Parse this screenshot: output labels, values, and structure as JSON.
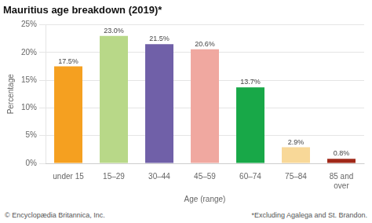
{
  "chart_data": {
    "type": "bar",
    "title": "Mauritius age breakdown (2019)*",
    "categories": [
      "under 15",
      "15–29",
      "30–44",
      "45–59",
      "60–74",
      "75–84",
      "85 and\nover"
    ],
    "values": [
      17.5,
      23.0,
      21.5,
      20.6,
      13.7,
      2.9,
      0.8
    ],
    "value_labels": [
      "17.5%",
      "23.0%",
      "21.5%",
      "20.6%",
      "13.7%",
      "2.9%",
      "0.8%"
    ],
    "data_labels": true,
    "colors": [
      "#f5a020",
      "#b8d888",
      "#7060a8",
      "#f0a8a0",
      "#18a848",
      "#f8d898",
      "#a02818"
    ],
    "xlabel": "Age (range)",
    "ylabel": "Percentage",
    "ylim": [
      0,
      25
    ],
    "yticks": [
      {
        "value": 0,
        "label": "0%"
      },
      {
        "value": 5,
        "label": "5%"
      },
      {
        "value": 10,
        "label": "10%"
      },
      {
        "value": 15,
        "label": "15%"
      },
      {
        "value": 20,
        "label": "20%"
      },
      {
        "value": 25,
        "label": "25%"
      }
    ],
    "grid": true,
    "annotations": [
      "© Encyclopædia Britannica, Inc.",
      "*Excluding Agalega and St. Brandon."
    ]
  }
}
